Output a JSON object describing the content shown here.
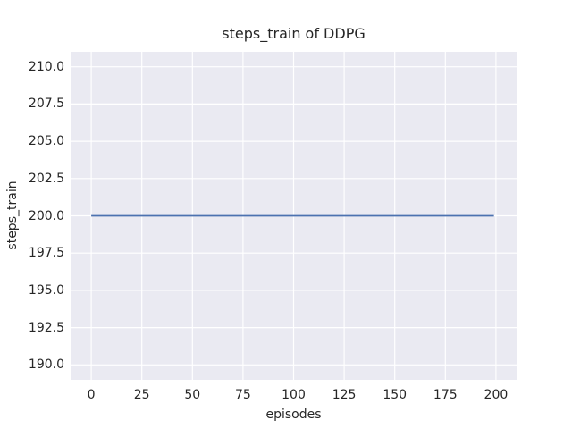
{
  "chart_data": {
    "type": "line",
    "title": "steps_train of DDPG",
    "xlabel": "episodes",
    "ylabel": "steps_train",
    "xlim": [
      -10.2,
      210.2
    ],
    "ylim": [
      189,
      211
    ],
    "xticks": [
      0,
      25,
      50,
      75,
      100,
      125,
      150,
      175,
      200
    ],
    "xtick_labels": [
      "0",
      "25",
      "50",
      "75",
      "100",
      "125",
      "150",
      "175",
      "200"
    ],
    "yticks": [
      190.0,
      192.5,
      195.0,
      197.5,
      200.0,
      202.5,
      205.0,
      207.5,
      210.0
    ],
    "ytick_labels": [
      "190.0",
      "192.5",
      "195.0",
      "197.5",
      "200.0",
      "202.5",
      "205.0",
      "207.5",
      "210.0"
    ],
    "grid": true,
    "legend_position": "none",
    "series": [
      {
        "name": "steps_train",
        "color": "#4c72b0",
        "line_width": 1.8,
        "x": [
          0,
          199
        ],
        "y": [
          200,
          200
        ],
        "note": "constant value 200 for all 200 episodes"
      }
    ],
    "style": {
      "fig_bg": "#ffffff",
      "plot_bg": "#eaeaf2",
      "grid_color": "#ffffff",
      "text_color": "#262626"
    }
  }
}
